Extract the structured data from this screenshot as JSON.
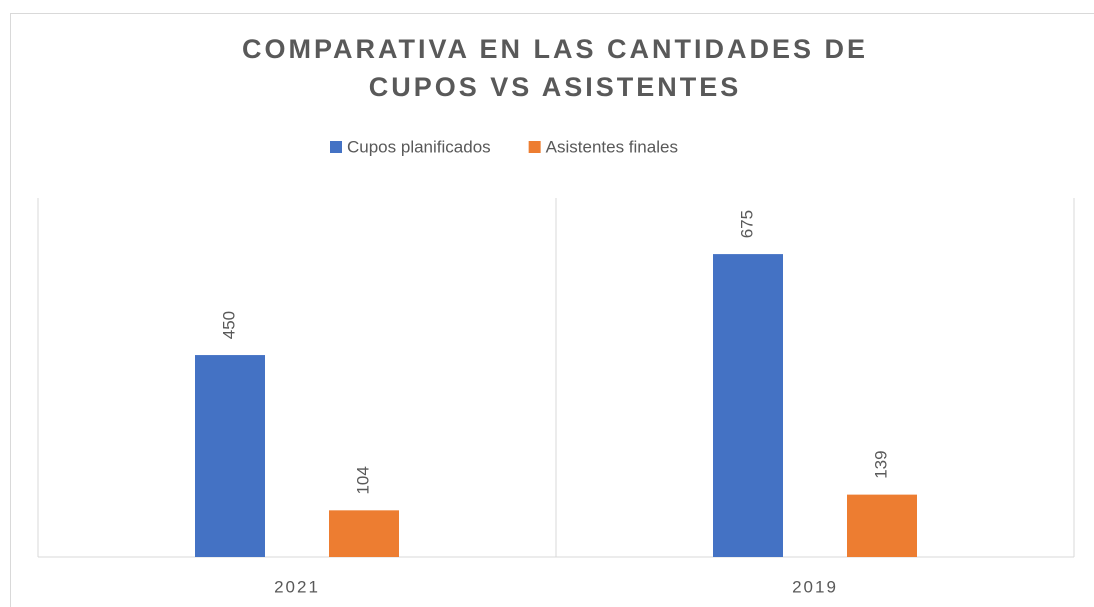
{
  "chart_data": {
    "type": "bar",
    "title": "COMPARATIVA EN LAS CANTIDADES DE CUPOS VS ASISTENTES",
    "categories": [
      "2021",
      "2019"
    ],
    "series": [
      {
        "name": "Cupos planificados",
        "color": "#4472c4",
        "values": [
          450,
          675
        ]
      },
      {
        "name": "Asistentes finales",
        "color": "#ed7d31",
        "values": [
          104,
          139
        ]
      }
    ],
    "ylim": [
      0,
      800
    ],
    "legend": "top"
  }
}
